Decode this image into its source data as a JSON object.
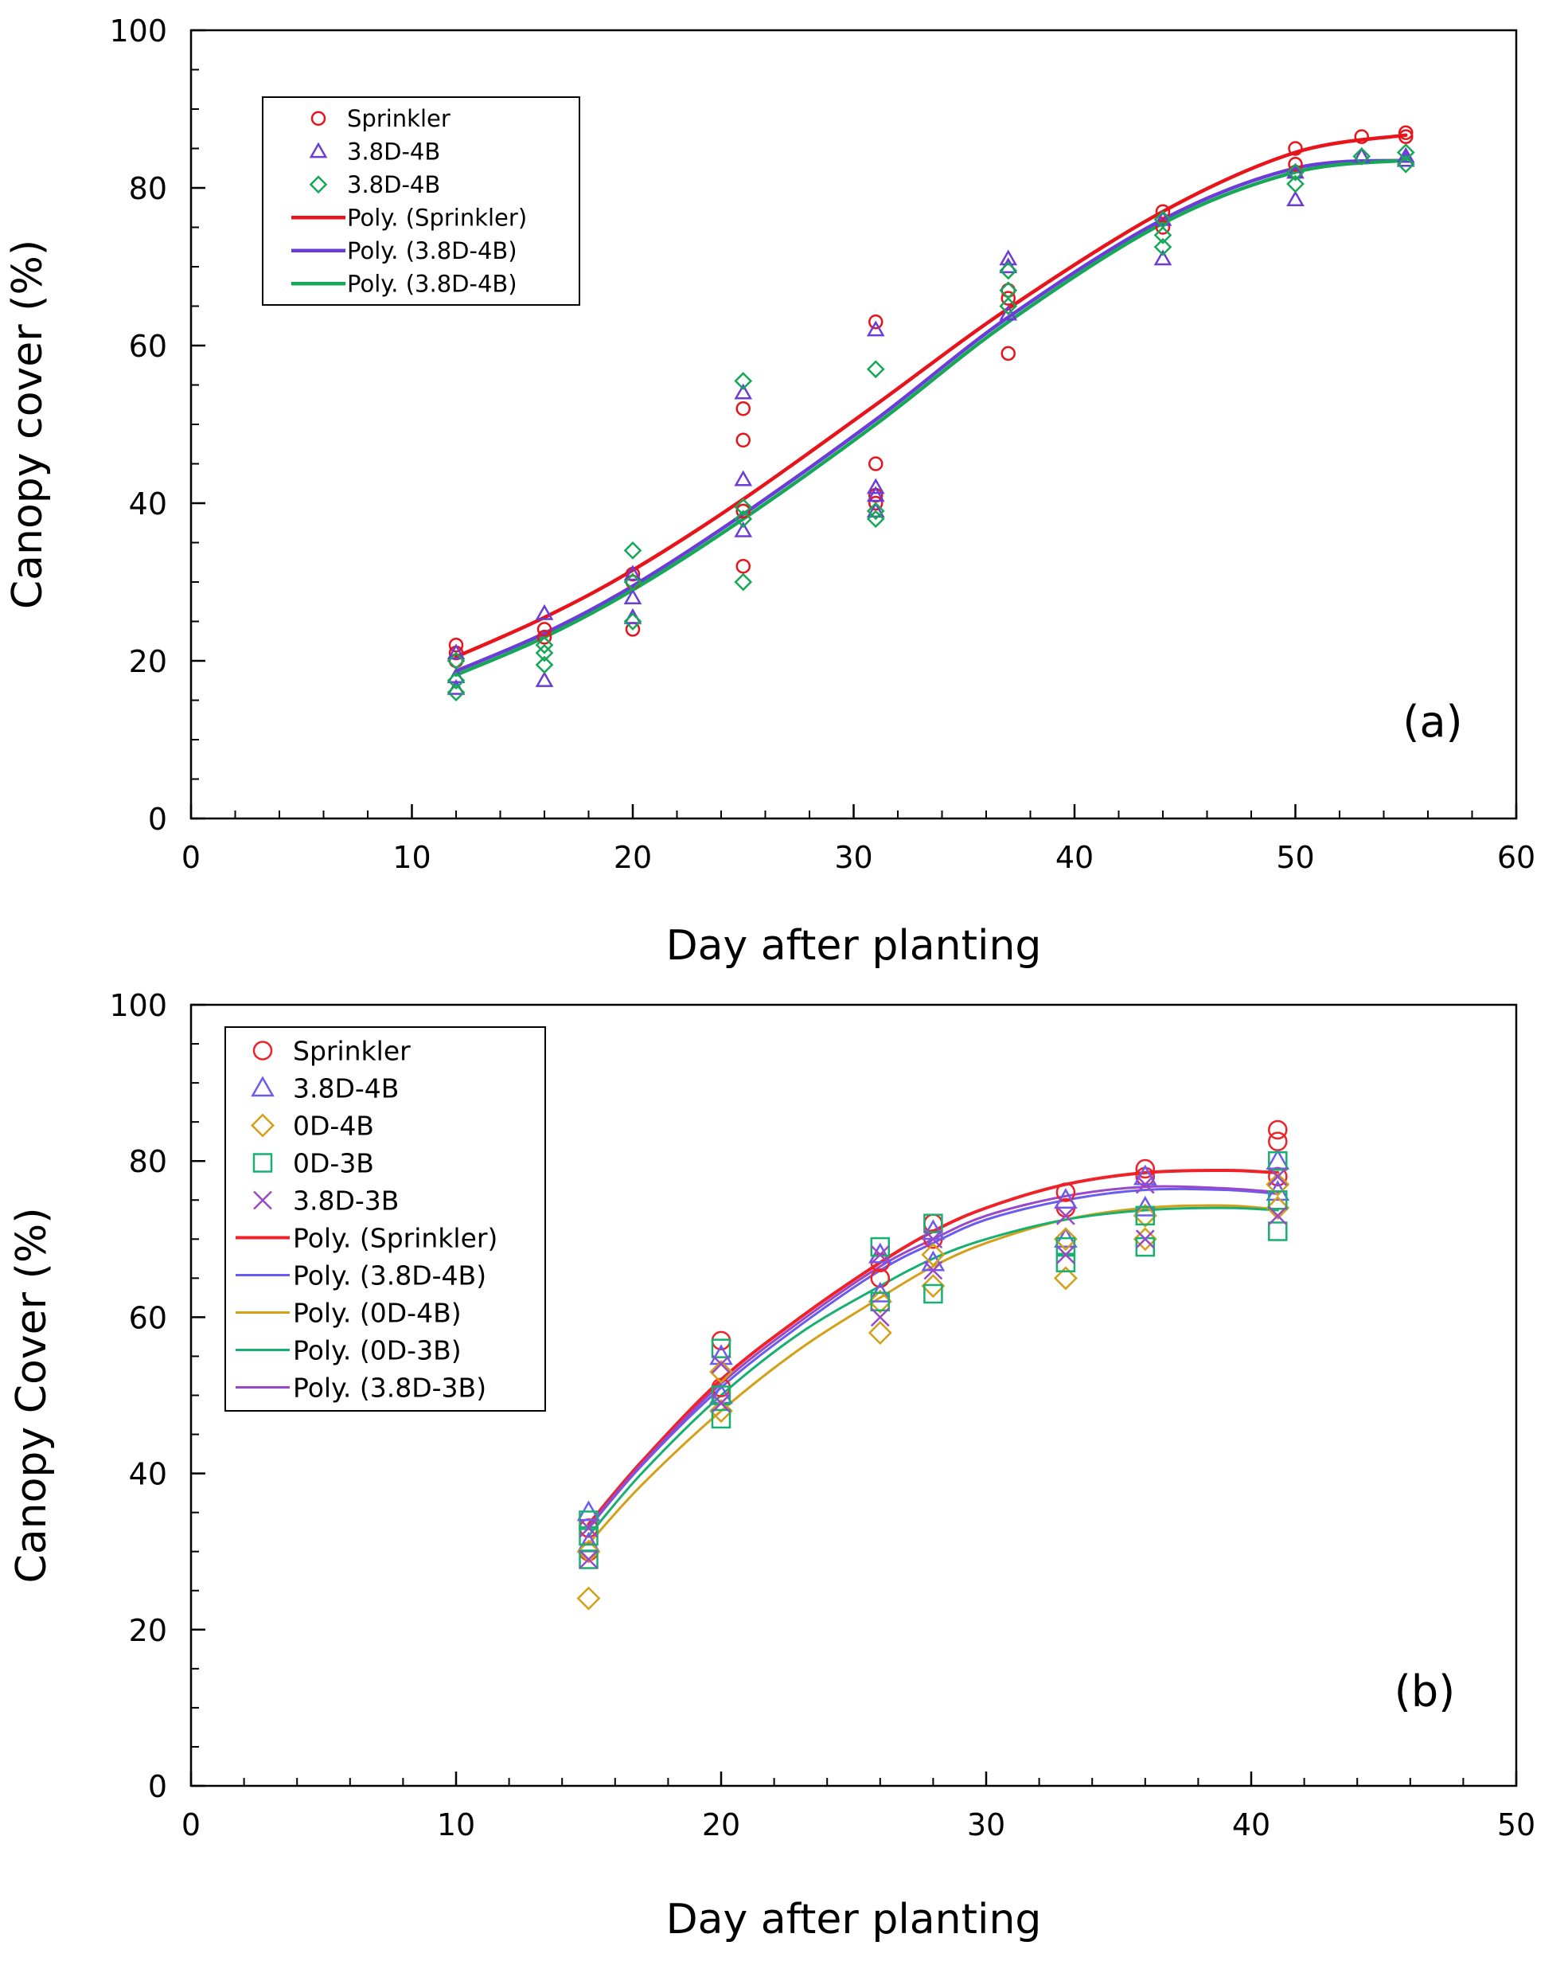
{
  "chart_data": [
    {
      "type": "scatter",
      "panel_label": "(a)",
      "xlabel": "Day after planting",
      "ylabel": "Canopy cover (%)",
      "xlim": [
        0,
        60
      ],
      "ylim": [
        0,
        100
      ],
      "x_ticks": [
        0,
        10,
        20,
        30,
        40,
        50,
        60
      ],
      "y_ticks": [
        0,
        20,
        40,
        60,
        80,
        100
      ],
      "grid": false,
      "legend_position": "top-left",
      "series": [
        {
          "name": "Sprinkler",
          "marker": "circle",
          "color": "#e8141c",
          "x": [
            12,
            12,
            12,
            16,
            16,
            20,
            20,
            20,
            25,
            25,
            25,
            25,
            31,
            31,
            31,
            31,
            37,
            37,
            37,
            44,
            44,
            50,
            50,
            50,
            53,
            55,
            55
          ],
          "y": [
            22,
            21,
            20,
            24,
            23,
            31,
            24,
            30,
            52,
            48,
            32,
            39,
            63,
            45,
            40,
            41,
            59,
            66,
            67,
            77,
            75,
            85,
            82,
            83,
            86.5,
            87,
            86.5
          ]
        },
        {
          "name": "3.8D-4B",
          "marker": "triangle",
          "color": "#6a3cd8",
          "x": [
            12,
            12,
            12,
            16,
            16,
            20,
            20,
            20,
            25,
            25,
            25,
            31,
            31,
            31,
            31,
            37,
            37,
            37,
            44,
            44,
            50,
            50,
            53,
            55,
            55
          ],
          "y": [
            21,
            18,
            16.5,
            26,
            17.5,
            28,
            25.5,
            31,
            54,
            43,
            36.5,
            62,
            42,
            41,
            39,
            71,
            70,
            64,
            71,
            76,
            78.5,
            82,
            84,
            84,
            83.5
          ]
        },
        {
          "name": "3.8D-4B",
          "marker": "diamond",
          "color": "#16a858",
          "x": [
            12,
            12,
            12,
            16,
            16,
            16,
            20,
            20,
            20,
            25,
            25,
            25,
            25,
            31,
            31,
            31,
            37,
            37,
            37,
            44,
            44,
            44,
            50,
            50,
            53,
            55,
            55
          ],
          "y": [
            20,
            17.5,
            16,
            22,
            19.5,
            21,
            34,
            25,
            30,
            55.5,
            38,
            30,
            39.5,
            57,
            39,
            38,
            69.5,
            67,
            65,
            74,
            72.5,
            76,
            80.5,
            82,
            84,
            84.5,
            83
          ]
        },
        {
          "name": "Poly. (Sprinkler)",
          "kind": "line",
          "color": "#e8141c",
          "width": 4.5,
          "x": [
            12,
            16,
            20,
            25,
            31,
            37,
            44,
            50,
            55
          ],
          "y": [
            20.5,
            25.5,
            31.5,
            40.5,
            52.5,
            64.7,
            77,
            84.5,
            86.7
          ]
        },
        {
          "name": "Poly. (3.8D-4B)",
          "kind": "line",
          "color": "#6a3cd8",
          "width": 4.5,
          "x": [
            12,
            16,
            20,
            25,
            31,
            37,
            44,
            50,
            55
          ],
          "y": [
            18.7,
            23.5,
            29.5,
            38.6,
            50.6,
            63.6,
            76,
            82.5,
            83.5
          ]
        },
        {
          "name": "Poly. (3.8D-4B)",
          "kind": "line",
          "color": "#16a858",
          "width": 4.5,
          "x": [
            12,
            16,
            20,
            25,
            31,
            37,
            44,
            50,
            55
          ],
          "y": [
            18.2,
            23,
            29,
            38,
            50,
            63,
            75.5,
            82,
            83.5
          ]
        }
      ]
    },
    {
      "type": "scatter",
      "panel_label": "(b)",
      "xlabel": "Day after planting",
      "ylabel": "Canopy Cover (%)",
      "xlim": [
        0,
        50
      ],
      "ylim": [
        0,
        100
      ],
      "x_ticks": [
        0,
        10,
        20,
        30,
        40,
        50
      ],
      "y_ticks": [
        0,
        20,
        40,
        60,
        80,
        100
      ],
      "grid": false,
      "legend_position": "top-left",
      "series": [
        {
          "name": "Sprinkler",
          "marker": "circle",
          "color": "#ee2228",
          "x": [
            15,
            15,
            20,
            20,
            26,
            26,
            28,
            28,
            33,
            33,
            36,
            36,
            41,
            41,
            41
          ],
          "y": [
            33,
            30,
            57,
            51,
            67,
            65,
            72,
            70,
            76,
            74,
            79,
            78,
            84,
            82.5,
            78
          ]
        },
        {
          "name": "3.8D-4B",
          "marker": "triangle",
          "color": "#6a5cf0",
          "x": [
            15,
            15,
            20,
            20,
            26,
            26,
            28,
            28,
            33,
            33,
            36,
            36,
            41,
            41
          ],
          "y": [
            35,
            31,
            55,
            50,
            68,
            63,
            71,
            67,
            75,
            70,
            78,
            74,
            80,
            76
          ]
        },
        {
          "name": "0D-4B",
          "marker": "diamond",
          "color": "#d4a018",
          "x": [
            15,
            15,
            20,
            20,
            26,
            26,
            28,
            28,
            33,
            33,
            36,
            36,
            41,
            41
          ],
          "y": [
            24,
            30,
            53,
            48,
            58,
            62,
            64,
            68,
            65,
            70,
            73,
            70,
            74,
            77
          ]
        },
        {
          "name": "0D-3B",
          "marker": "square",
          "color": "#18b070",
          "x": [
            15,
            15,
            15,
            20,
            20,
            20,
            26,
            26,
            28,
            28,
            33,
            33,
            36,
            36,
            41,
            41,
            41
          ],
          "y": [
            29,
            32,
            34,
            47,
            50,
            56,
            69,
            62,
            72,
            63,
            67,
            69,
            69,
            73,
            71,
            75,
            80
          ]
        },
        {
          "name": "3.8D-3B",
          "marker": "x",
          "color": "#9848c8",
          "x": [
            15,
            15,
            20,
            20,
            26,
            26,
            28,
            28,
            33,
            33,
            36,
            36,
            41,
            41
          ],
          "y": [
            29,
            33,
            54,
            49,
            68,
            60,
            70,
            66,
            73,
            68,
            77,
            70,
            78,
            73
          ]
        },
        {
          "name": "Poly. (Sprinkler)",
          "kind": "line",
          "color": "#ee2228",
          "width": 4,
          "x": [
            15,
            17,
            20,
            23,
            26,
            28,
            30,
            33,
            36,
            39,
            41
          ],
          "y": [
            33.5,
            41.5,
            52,
            60,
            67,
            71,
            74,
            77,
            78.5,
            78.8,
            78.5
          ]
        },
        {
          "name": "Poly. (3.8D-4B)",
          "kind": "line",
          "color": "#6a5cf0",
          "width": 3,
          "x": [
            15,
            17,
            20,
            23,
            26,
            28,
            30,
            33,
            36,
            39,
            41
          ],
          "y": [
            33,
            41,
            51,
            59,
            66,
            69.5,
            72.5,
            75,
            76.3,
            76.3,
            75.8
          ]
        },
        {
          "name": "Poly. (0D-4B)",
          "kind": "line",
          "color": "#d4a018",
          "width": 3,
          "x": [
            15,
            17,
            20,
            23,
            26,
            28,
            30,
            33,
            36,
            39,
            41
          ],
          "y": [
            31,
            38.5,
            48,
            56,
            62.5,
            66.5,
            69.5,
            72.5,
            74,
            74.3,
            73.8
          ]
        },
        {
          "name": "Poly. (0D-3B)",
          "kind": "line",
          "color": "#18b070",
          "width": 3,
          "x": [
            15,
            17,
            20,
            23,
            26,
            28,
            30,
            33,
            36,
            39,
            41
          ],
          "y": [
            32,
            40,
            50,
            58,
            64,
            67.5,
            70,
            72.5,
            73.7,
            74,
            73.7
          ]
        },
        {
          "name": "Poly. (3.8D-3B)",
          "kind": "line",
          "color": "#9848c8",
          "width": 3,
          "x": [
            15,
            17,
            20,
            23,
            26,
            28,
            30,
            33,
            36,
            39,
            41
          ],
          "y": [
            33.2,
            41.2,
            51.5,
            59.5,
            66.5,
            70,
            73,
            75.5,
            76.7,
            76.5,
            76
          ]
        }
      ]
    }
  ]
}
